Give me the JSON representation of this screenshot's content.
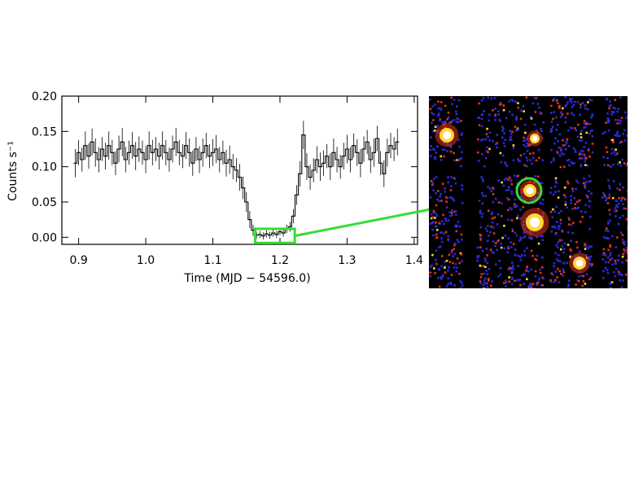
{
  "chart_data": {
    "type": "line",
    "subtype": "step-with-error-bars",
    "xlabel": "Time (MJD − 54596.0)",
    "ylabel": "Counts s⁻¹",
    "xlim": [
      0.875,
      1.405
    ],
    "ylim": [
      -0.01,
      0.2
    ],
    "x_ticks": [
      "0.9",
      "1.0",
      "1.1",
      "1.2",
      "1.3",
      "1.4"
    ],
    "y_ticks": [
      "0.00",
      "0.05",
      "0.10",
      "0.15",
      "0.20"
    ],
    "grid": false,
    "highlight_box": {
      "x": [
        1.163,
        1.222
      ],
      "y": [
        -0.008,
        0.012
      ]
    },
    "series": [
      {
        "x": [
          0.895,
          0.9,
          0.905,
          0.91,
          0.915,
          0.92,
          0.925,
          0.93,
          0.935,
          0.94,
          0.945,
          0.95,
          0.955,
          0.96,
          0.965,
          0.97,
          0.975,
          0.98,
          0.985,
          0.99,
          0.995,
          1.0,
          1.005,
          1.01,
          1.015,
          1.02,
          1.025,
          1.03,
          1.035,
          1.04,
          1.045,
          1.05,
          1.055,
          1.06,
          1.065,
          1.07,
          1.075,
          1.08,
          1.085,
          1.09,
          1.095,
          1.1,
          1.105,
          1.11,
          1.115,
          1.12,
          1.125,
          1.13,
          1.135,
          1.14,
          1.145,
          1.15,
          1.155,
          1.16,
          1.165,
          1.17,
          1.175,
          1.18,
          1.185,
          1.19,
          1.195,
          1.2,
          1.205,
          1.21,
          1.215,
          1.22,
          1.225,
          1.23,
          1.235,
          1.24,
          1.245,
          1.25,
          1.255,
          1.26,
          1.265,
          1.27,
          1.275,
          1.28,
          1.285,
          1.29,
          1.295,
          1.3,
          1.305,
          1.31,
          1.315,
          1.32,
          1.325,
          1.33,
          1.335,
          1.34,
          1.345,
          1.35,
          1.355,
          1.36,
          1.365,
          1.37,
          1.375
        ],
        "y": [
          0.105,
          0.12,
          0.11,
          0.13,
          0.115,
          0.135,
          0.12,
          0.11,
          0.125,
          0.115,
          0.13,
          0.12,
          0.105,
          0.125,
          0.135,
          0.11,
          0.12,
          0.13,
          0.115,
          0.125,
          0.12,
          0.11,
          0.13,
          0.12,
          0.125,
          0.115,
          0.13,
          0.12,
          0.11,
          0.125,
          0.135,
          0.12,
          0.115,
          0.13,
          0.12,
          0.105,
          0.125,
          0.11,
          0.12,
          0.13,
          0.115,
          0.12,
          0.125,
          0.11,
          0.12,
          0.105,
          0.11,
          0.1,
          0.095,
          0.085,
          0.07,
          0.05,
          0.025,
          0.01,
          0.003,
          0.004,
          0.002,
          0.005,
          0.003,
          0.006,
          0.004,
          0.008,
          0.006,
          0.012,
          0.015,
          0.03,
          0.06,
          0.09,
          0.145,
          0.1,
          0.085,
          0.095,
          0.11,
          0.1,
          0.105,
          0.115,
          0.1,
          0.12,
          0.11,
          0.1,
          0.115,
          0.125,
          0.11,
          0.13,
          0.12,
          0.105,
          0.125,
          0.135,
          0.11,
          0.12,
          0.14,
          0.105,
          0.09,
          0.12,
          0.13,
          0.125,
          0.135
        ],
        "err": [
          0.02,
          0.018,
          0.017,
          0.02,
          0.018,
          0.019,
          0.02,
          0.018,
          0.017,
          0.019,
          0.02,
          0.018,
          0.017,
          0.019,
          0.02,
          0.018,
          0.017,
          0.019,
          0.02,
          0.018,
          0.017,
          0.019,
          0.02,
          0.018,
          0.017,
          0.019,
          0.02,
          0.018,
          0.017,
          0.019,
          0.02,
          0.018,
          0.017,
          0.019,
          0.02,
          0.018,
          0.017,
          0.019,
          0.02,
          0.018,
          0.017,
          0.019,
          0.02,
          0.018,
          0.017,
          0.019,
          0.02,
          0.018,
          0.017,
          0.019,
          0.016,
          0.014,
          0.012,
          0.008,
          0.005,
          0.005,
          0.005,
          0.005,
          0.005,
          0.005,
          0.005,
          0.005,
          0.005,
          0.006,
          0.007,
          0.01,
          0.014,
          0.018,
          0.02,
          0.019,
          0.018,
          0.017,
          0.019,
          0.02,
          0.018,
          0.017,
          0.019,
          0.02,
          0.018,
          0.017,
          0.019,
          0.02,
          0.018,
          0.017,
          0.019,
          0.02,
          0.018,
          0.017,
          0.019,
          0.02,
          0.018,
          0.017,
          0.019,
          0.02,
          0.018,
          0.017,
          0.019
        ]
      }
    ]
  },
  "image_panel": {
    "colors": {
      "background": "#000000",
      "low": "#2a2ad8",
      "mid": "#e03318",
      "high": "#ffd83a",
      "source": "#ffffff",
      "marker": "#33dd33"
    }
  }
}
